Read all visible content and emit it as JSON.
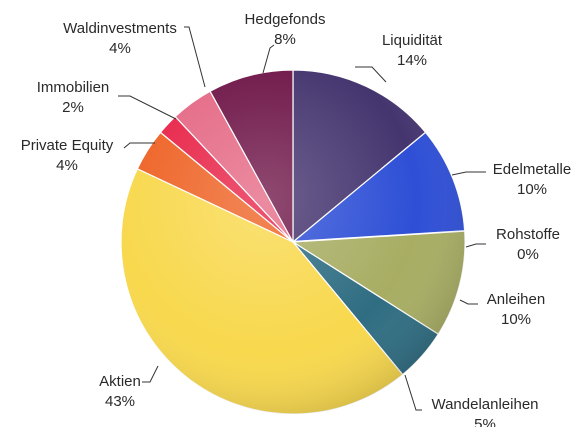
{
  "chart_data": {
    "type": "pie",
    "title": "",
    "slices": [
      {
        "label": "Liquidität",
        "value": 14,
        "value_label": "14%",
        "color": "#45356f"
      },
      {
        "label": "Edelmetalle",
        "value": 10,
        "value_label": "10%",
        "color": "#2e4fd6"
      },
      {
        "label": "Rohstoffe",
        "value": 0,
        "value_label": "0%",
        "color": "#6a4d8c"
      },
      {
        "label": "Anleihen",
        "value": 10,
        "value_label": "10%",
        "color": "#a8ad63"
      },
      {
        "label": "Wandelanleihen",
        "value": 5,
        "value_label": "5%",
        "color": "#2f6d82"
      },
      {
        "label": "Aktien",
        "value": 43,
        "value_label": "43%",
        "color": "#f8d84d"
      },
      {
        "label": "Private Equity",
        "value": 4,
        "value_label": "4%",
        "color": "#ee6427"
      },
      {
        "label": "Immobilien",
        "value": 2,
        "value_label": "2%",
        "color": "#e8264a"
      },
      {
        "label": "Waldinvestments",
        "value": 4,
        "value_label": "4%",
        "color": "#e56a86"
      },
      {
        "label": "Hedgefonds",
        "value": 8,
        "value_label": "8%",
        "color": "#6f1749"
      }
    ],
    "legend": "none"
  }
}
